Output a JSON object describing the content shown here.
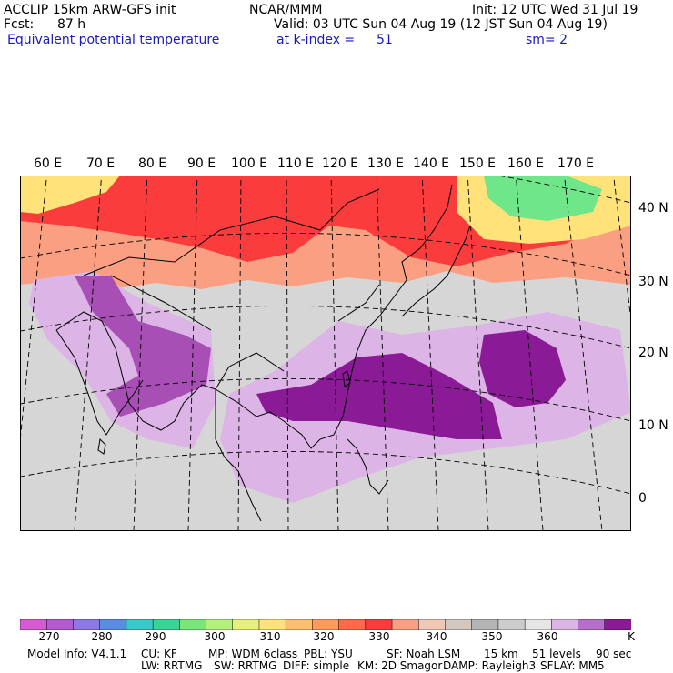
{
  "header": {
    "model": "ACCLIP 15km ARW-GFS init",
    "org": "NCAR/MMM",
    "init": "Init: 12 UTC Wed 31 Jul 19",
    "fcst_label": "Fcst:",
    "fcst_value": "87 h",
    "valid": "Valid: 03 UTC Sun 04 Aug 19 (12 JST Sun 04 Aug 19)",
    "field": "Equivalent potential temperature",
    "level": "at k-index =",
    "level_value": "51",
    "smooth": "sm= 2"
  },
  "map": {
    "lon_labels": [
      "60 E",
      "70 E",
      "80 E",
      "90 E",
      "100 E",
      "110 E",
      "120 E",
      "130 E",
      "140 E",
      "150 E",
      "160 E",
      "170 E"
    ],
    "lat_labels": [
      "40 N",
      "30 N",
      "20 N",
      "10 N",
      "0"
    ],
    "colors": {
      "background": "#d6d6d6",
      "warm_band": "#ff6a4a",
      "hot_band": "#fa3c3c",
      "salmon": "#fa9f82",
      "purple_light": "#dcb4e6",
      "purple_mid": "#a74fb5",
      "purple_dark": "#8a1a96",
      "green": "#6fe68a",
      "yellow": "#ffe27a",
      "land_outline": "#000000",
      "grid": "#000000"
    }
  },
  "colorbar": {
    "unit": "K",
    "ticks": [
      "270",
      "280",
      "290",
      "300",
      "310",
      "320",
      "330",
      "340",
      "350",
      "360"
    ],
    "colors": [
      "#d75ad2",
      "#b35ad2",
      "#8c78e6",
      "#5a8ce6",
      "#3cc8c8",
      "#3cd296",
      "#78e678",
      "#b4f07a",
      "#e6f07a",
      "#ffe27a",
      "#ffbe6e",
      "#ff9a5a",
      "#ff6a4a",
      "#fa3c3c",
      "#fa9f82",
      "#f0c8b4",
      "#d2c8c0",
      "#b4b4b4",
      "#cccccc",
      "#e6e6e6",
      "#dcb4e6",
      "#b470c8",
      "#8a1a96"
    ]
  },
  "footer": {
    "line1": [
      "Model Info: V4.1.1",
      "CU: KF",
      "MP: WDM 6class",
      "PBL: YSU",
      "SF: Noah LSM",
      "15 km",
      "51 levels",
      "90 sec"
    ],
    "line2": [
      "LW: RRTMG",
      "SW: RRTMG",
      "DIFF: simple",
      "KM: 2D Smagor",
      "DAMP: Rayleigh3",
      "SFLAY: MM5"
    ]
  }
}
